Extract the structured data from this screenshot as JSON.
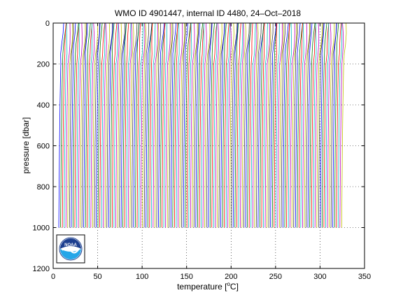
{
  "chart_data": {
    "type": "line",
    "title": "WMO ID 4901447, internal ID 4480, 24–Oct–2018",
    "xlabel_prefix": "temperature [",
    "xlabel_unit": "C]",
    "ylabel": "pressure [dbar]",
    "xlim": [
      0,
      350
    ],
    "ylim": [
      0,
      1200
    ],
    "y_reversed": true,
    "x_ticks": [
      "0",
      "50",
      "100",
      "150",
      "200",
      "250",
      "300",
      "350"
    ],
    "y_ticks": [
      "0",
      "200",
      "400",
      "600",
      "800",
      "1000",
      "1200"
    ],
    "grid": "dotted",
    "profiles": {
      "count": 160,
      "offset_step": 2,
      "first_offset": 8,
      "pressure_levels": [
        0,
        50,
        100,
        150,
        200,
        300,
        400,
        500,
        600,
        700,
        800,
        900,
        1000
      ],
      "temperature_anomaly": [
        3.0,
        2.7,
        2.0,
        1.2,
        0.6,
        0.1,
        -0.3,
        -0.6,
        -0.9,
        -1.1,
        -1.3,
        -1.5,
        -1.7
      ],
      "colors": [
        "#0000ff",
        "#008000",
        "#ff0000",
        "#00bfbf",
        "#bf00bf",
        "#bfbf00",
        "#404040"
      ]
    },
    "logo": {
      "name": "noaa-logo",
      "text": "NOAA"
    }
  }
}
